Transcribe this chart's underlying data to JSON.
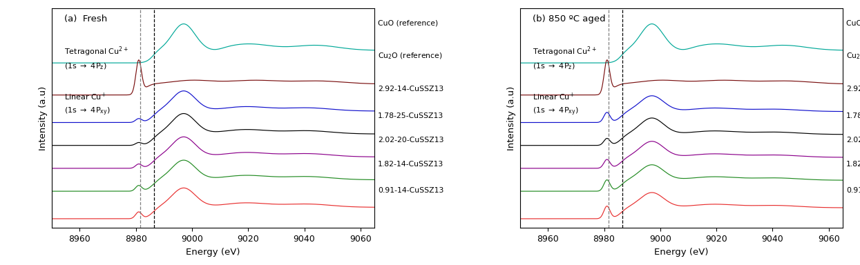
{
  "xlabel": "Energy (eV)",
  "ylabel": "Intensity (a.u)",
  "xlim": [
    8950,
    9065
  ],
  "panel_a_title": "(a)  Fresh",
  "panel_b_title": "(b) 850 ºC aged",
  "dashed_line1_x": 8981.5,
  "dashed_line2_x": 8986.5,
  "legend_labels": [
    "CuO (reference)",
    "Cu$_2$O (reference)",
    "2.92-14-CuSSZ13",
    "1.78-25-CuSSZ13",
    "2.02-20-CuSSZ13",
    "1.82-14-CuSSZ13",
    "0.91-14-CuSSZ13"
  ],
  "colors": [
    "#00a898",
    "#7a1010",
    "#1010cc",
    "#000000",
    "#8b008b",
    "#228B22",
    "#e83030"
  ],
  "offsets": [
    6.8,
    5.4,
    4.2,
    3.2,
    2.2,
    1.2,
    0.0
  ],
  "xticks": [
    8960,
    8980,
    9000,
    9020,
    9040,
    9060
  ],
  "ylim": [
    -0.4,
    9.2
  ]
}
